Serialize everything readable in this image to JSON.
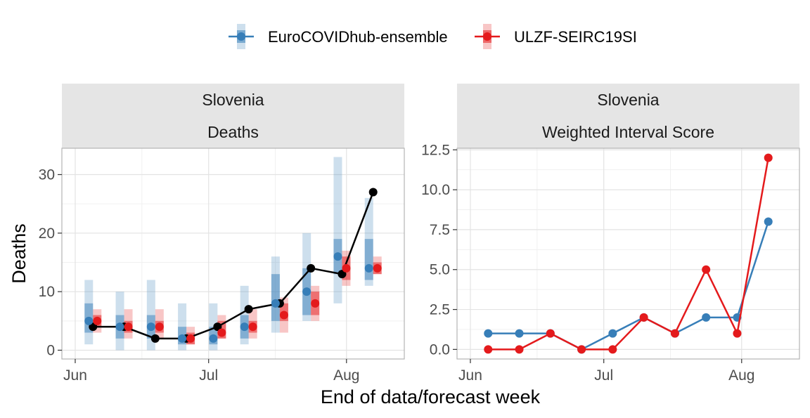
{
  "legend": {
    "items": [
      {
        "label": "EuroCOVIDhub-ensemble",
        "color": "#377EB8"
      },
      {
        "label": "ULZF-SEIRC19SI",
        "color": "#E41A1C"
      }
    ]
  },
  "xlabel": "End of data/forecast week",
  "chart_data": [
    {
      "type": "line",
      "strips": [
        "Slovenia",
        "Deaths"
      ],
      "ylabel": "Deaths",
      "xticks": [
        "Jun",
        "Jul",
        "Aug"
      ],
      "yticks": [
        "0",
        "10",
        "20",
        "30"
      ],
      "ylim": [
        -1.5,
        34.5
      ],
      "x_dates": [
        "2021-06-05",
        "2021-06-12",
        "2021-06-19",
        "2021-06-26",
        "2021-07-03",
        "2021-07-10",
        "2021-07-17",
        "2021-07-24",
        "2021-07-31",
        "2021-08-07"
      ],
      "observed": {
        "name": "",
        "color": "#000000",
        "values": [
          4,
          4,
          2,
          2,
          4,
          7,
          8,
          14,
          13,
          27
        ]
      },
      "forecasts": [
        {
          "name": "EuroCOVIDhub-ensemble",
          "color": "#377EB8",
          "medians": [
            5,
            4,
            4,
            2,
            2,
            4,
            8,
            10,
            16,
            14
          ],
          "inner_50": [
            [
              3,
              8
            ],
            [
              2,
              6
            ],
            [
              2,
              6
            ],
            [
              1,
              4
            ],
            [
              1,
              4
            ],
            [
              2,
              6
            ],
            [
              5,
              13
            ],
            [
              6,
              14
            ],
            [
              13,
              19
            ],
            [
              12,
              19
            ]
          ],
          "outer_90": [
            [
              1,
              12
            ],
            [
              0,
              10
            ],
            [
              0,
              12
            ],
            [
              0,
              8
            ],
            [
              0,
              8
            ],
            [
              1,
              11
            ],
            [
              3,
              16
            ],
            [
              5,
              20
            ],
            [
              8,
              33
            ],
            [
              11,
              26
            ]
          ]
        },
        {
          "name": "ULZF-SEIRC19SI",
          "color": "#E41A1C",
          "medians": [
            5,
            4,
            4,
            2,
            3,
            4,
            6,
            8,
            14,
            14
          ],
          "inner_50": [
            [
              4,
              6
            ],
            [
              3,
              5
            ],
            [
              3,
              5
            ],
            [
              1,
              3
            ],
            [
              2,
              5
            ],
            [
              3,
              5
            ],
            [
              5,
              8
            ],
            [
              6,
              10
            ],
            [
              12,
              16
            ],
            [
              13,
              15
            ]
          ],
          "outer_90": [
            [
              3,
              7
            ],
            [
              2,
              7
            ],
            [
              2,
              7
            ],
            [
              1,
              4
            ],
            [
              2,
              6
            ],
            [
              2,
              7
            ],
            [
              3,
              9
            ],
            [
              5,
              11
            ],
            [
              11,
              17
            ],
            [
              13,
              16
            ]
          ]
        }
      ]
    },
    {
      "type": "line",
      "strips": [
        "Slovenia",
        "Weighted Interval Score"
      ],
      "ylabel": "",
      "xticks": [
        "Jun",
        "Jul",
        "Aug"
      ],
      "yticks": [
        "0.0",
        "2.5",
        "5.0",
        "7.5",
        "10.0",
        "12.5"
      ],
      "ylim": [
        -0.6,
        12.6
      ],
      "x_dates": [
        "2021-06-05",
        "2021-06-12",
        "2021-06-19",
        "2021-06-26",
        "2021-07-03",
        "2021-07-10",
        "2021-07-17",
        "2021-07-24",
        "2021-07-31",
        "2021-08-07"
      ],
      "series": [
        {
          "name": "EuroCOVIDhub-ensemble",
          "color": "#377EB8",
          "values": [
            1,
            1,
            1,
            0,
            1,
            2,
            1,
            2,
            2,
            8
          ]
        },
        {
          "name": "ULZF-SEIRC19SI",
          "color": "#E41A1C",
          "values": [
            0,
            0,
            1,
            0,
            0,
            2,
            1,
            5,
            1,
            12
          ]
        }
      ]
    }
  ]
}
